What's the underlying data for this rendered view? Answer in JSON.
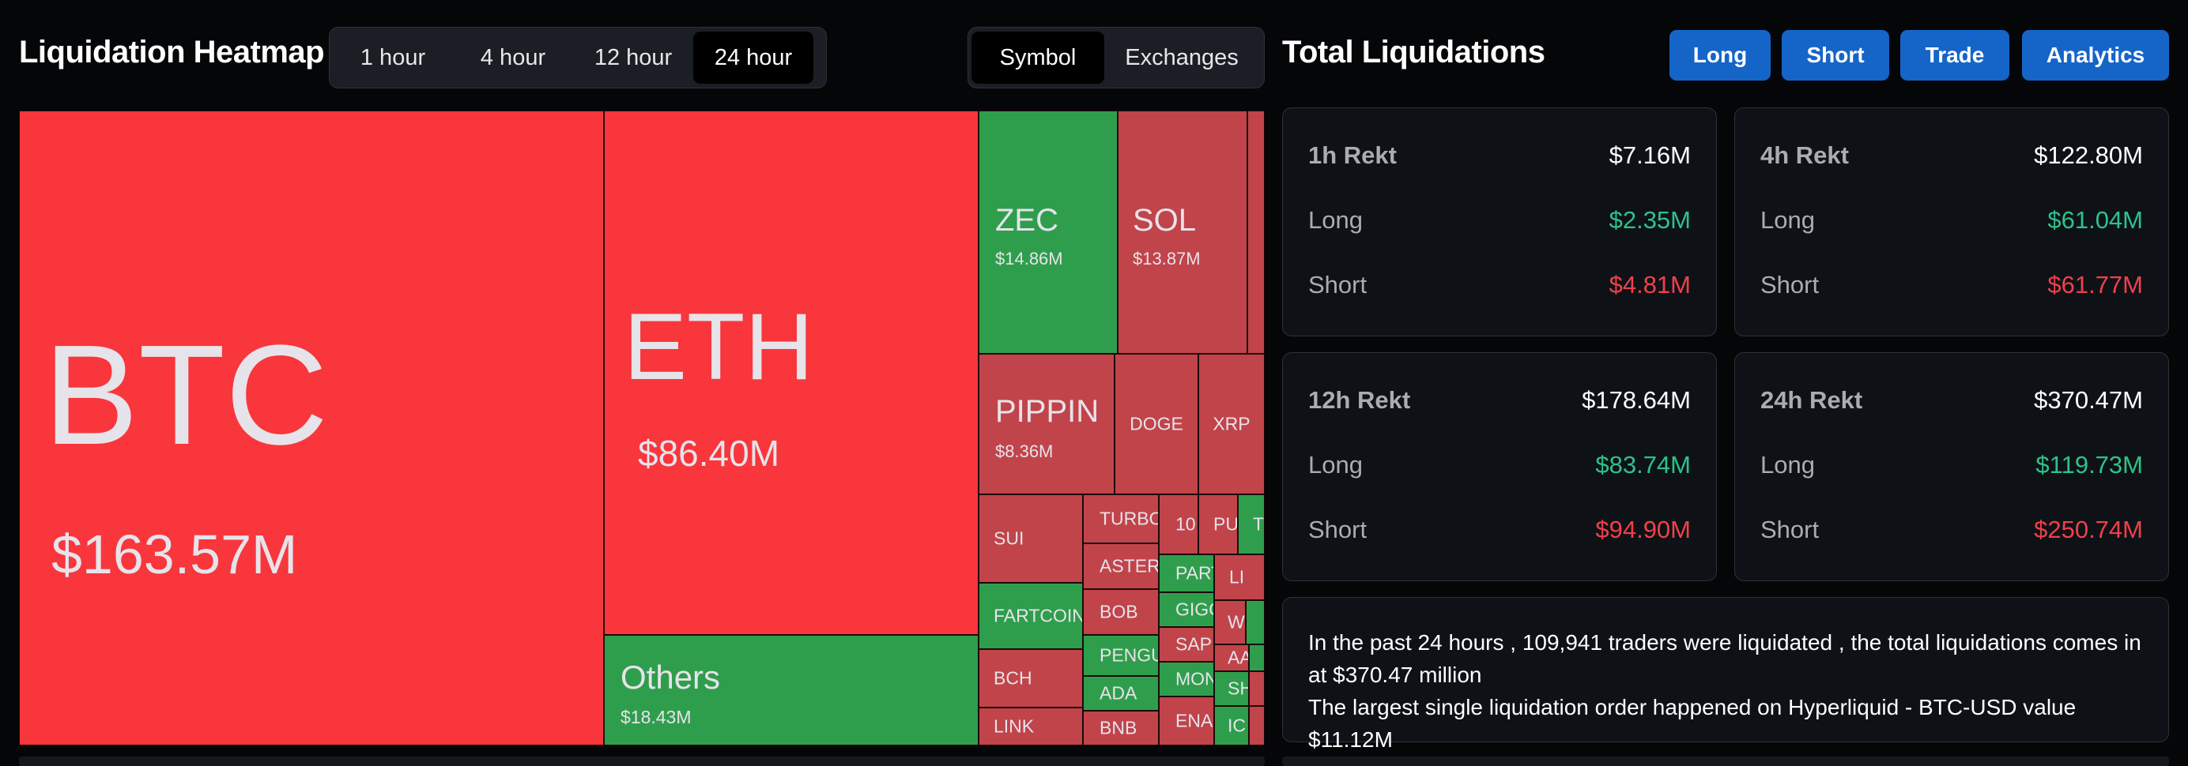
{
  "heatmap": {
    "title": "Liquidation Heatmap",
    "time_tabs": [
      "1 hour",
      "4 hour",
      "12 hour",
      "24 hour"
    ],
    "active_time_tab": "24 hour",
    "view_tabs": [
      "Symbol",
      "Exchanges"
    ],
    "active_view_tab": "Symbol",
    "tiles": {
      "btc": {
        "symbol": "BTC",
        "value": "$163.57M"
      },
      "eth": {
        "symbol": "ETH",
        "value": "$86.40M"
      },
      "others": {
        "symbol": "Others",
        "value": "$18.43M"
      },
      "zec": {
        "symbol": "ZEC",
        "value": "$14.86M"
      },
      "sol": {
        "symbol": "SOL",
        "value": "$13.87M"
      },
      "pippin": {
        "symbol": "PIPPIN",
        "value": "$8.36M"
      },
      "doge": {
        "symbol": "DOGE"
      },
      "xrp": {
        "symbol": "XRP"
      },
      "sui": {
        "symbol": "SUI"
      },
      "fartcoin": {
        "symbol": "FARTCOIN"
      },
      "bch": {
        "symbol": "BCH"
      },
      "link": {
        "symbol": "LINK"
      },
      "turbo": {
        "symbol": "TURBO"
      },
      "aster": {
        "symbol": "ASTER"
      },
      "bob": {
        "symbol": "BOB"
      },
      "pengu": {
        "symbol": "PENGU"
      },
      "ada": {
        "symbol": "ADA"
      },
      "bnb": {
        "symbol": "BNB"
      },
      "t10": {
        "symbol": "10"
      },
      "pu": {
        "symbol": "PU"
      },
      "tt": {
        "symbol": "T"
      },
      "part": {
        "symbol": "PART"
      },
      "gigg": {
        "symbol": "GIGG"
      },
      "sap": {
        "symbol": "SAP"
      },
      "mon": {
        "symbol": "MON"
      },
      "ena": {
        "symbol": "ENA"
      },
      "li": {
        "symbol": "LI"
      },
      "w": {
        "symbol": "W"
      },
      "aa": {
        "symbol": "AA"
      },
      "sh": {
        "symbol": "SH"
      },
      "ic": {
        "symbol": "IC"
      }
    }
  },
  "totals": {
    "title": "Total Liquidations",
    "buttons": {
      "long": "Long",
      "short": "Short",
      "trade": "Trade",
      "analytics": "Analytics"
    },
    "cards": [
      {
        "label": "1h Rekt",
        "total": "$7.16M",
        "long_label": "Long",
        "long": "$2.35M",
        "short_label": "Short",
        "short": "$4.81M"
      },
      {
        "label": "4h Rekt",
        "total": "$122.80M",
        "long_label": "Long",
        "long": "$61.04M",
        "short_label": "Short",
        "short": "$61.77M"
      },
      {
        "label": "12h Rekt",
        "total": "$178.64M",
        "long_label": "Long",
        "long": "$83.74M",
        "short_label": "Short",
        "short": "$94.90M"
      },
      {
        "label": "24h Rekt",
        "total": "$370.47M",
        "long_label": "Long",
        "long": "$119.73M",
        "short_label": "Short",
        "short": "$250.74M"
      }
    ],
    "summary_line1": "In the past 24 hours , 109,941 traders were liquidated , the total liquidations comes in at $370.47 million",
    "summary_line2": "The largest single liquidation order happened on Hyperliquid - BTC-USD value $11.12M"
  },
  "colors": {
    "bright_red": "#f8363c",
    "red": "#c1444a",
    "green": "#2f9e4c",
    "accent_blue": "#1565c9",
    "positive": "#2ec28a",
    "negative": "#f0404a"
  }
}
